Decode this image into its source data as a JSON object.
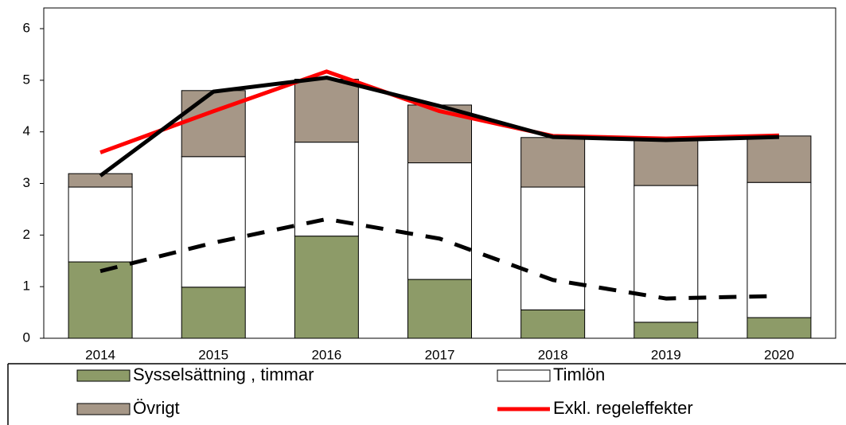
{
  "chart_data": {
    "type": "bar",
    "categories": [
      "2014",
      "2015",
      "2016",
      "2017",
      "2018",
      "2019",
      "2020"
    ],
    "ylim": [
      0,
      6
    ],
    "yticks": [
      0,
      1,
      2,
      3,
      4,
      5,
      6
    ],
    "series": [
      {
        "name": "Sysselsättning , timmar",
        "type": "bar",
        "color": "#8d9b68",
        "values": [
          1.48,
          0.99,
          1.98,
          1.14,
          0.55,
          0.31,
          0.4
        ]
      },
      {
        "name": "Timlön",
        "type": "bar",
        "color": "#ffffff",
        "values": [
          1.45,
          2.53,
          1.82,
          2.26,
          2.38,
          2.65,
          2.62
        ]
      },
      {
        "name": "Övrigt",
        "type": "bar",
        "color": "#a69787",
        "values": [
          0.26,
          1.28,
          1.22,
          1.12,
          0.96,
          0.9,
          0.9
        ]
      },
      {
        "name": "Exkl. regeleffekter",
        "type": "line",
        "color": "#ff0000",
        "values": [
          3.6,
          4.4,
          5.17,
          4.4,
          3.92,
          3.87,
          3.93
        ]
      },
      {
        "type": "line",
        "color": "#000000",
        "values": [
          3.15,
          4.78,
          5.05,
          4.5,
          3.9,
          3.84,
          3.9
        ]
      },
      {
        "type": "line",
        "color": "#000000",
        "dashed": true,
        "values": [
          1.3,
          1.85,
          2.31,
          1.93,
          1.13,
          0.77,
          0.82
        ]
      }
    ]
  }
}
